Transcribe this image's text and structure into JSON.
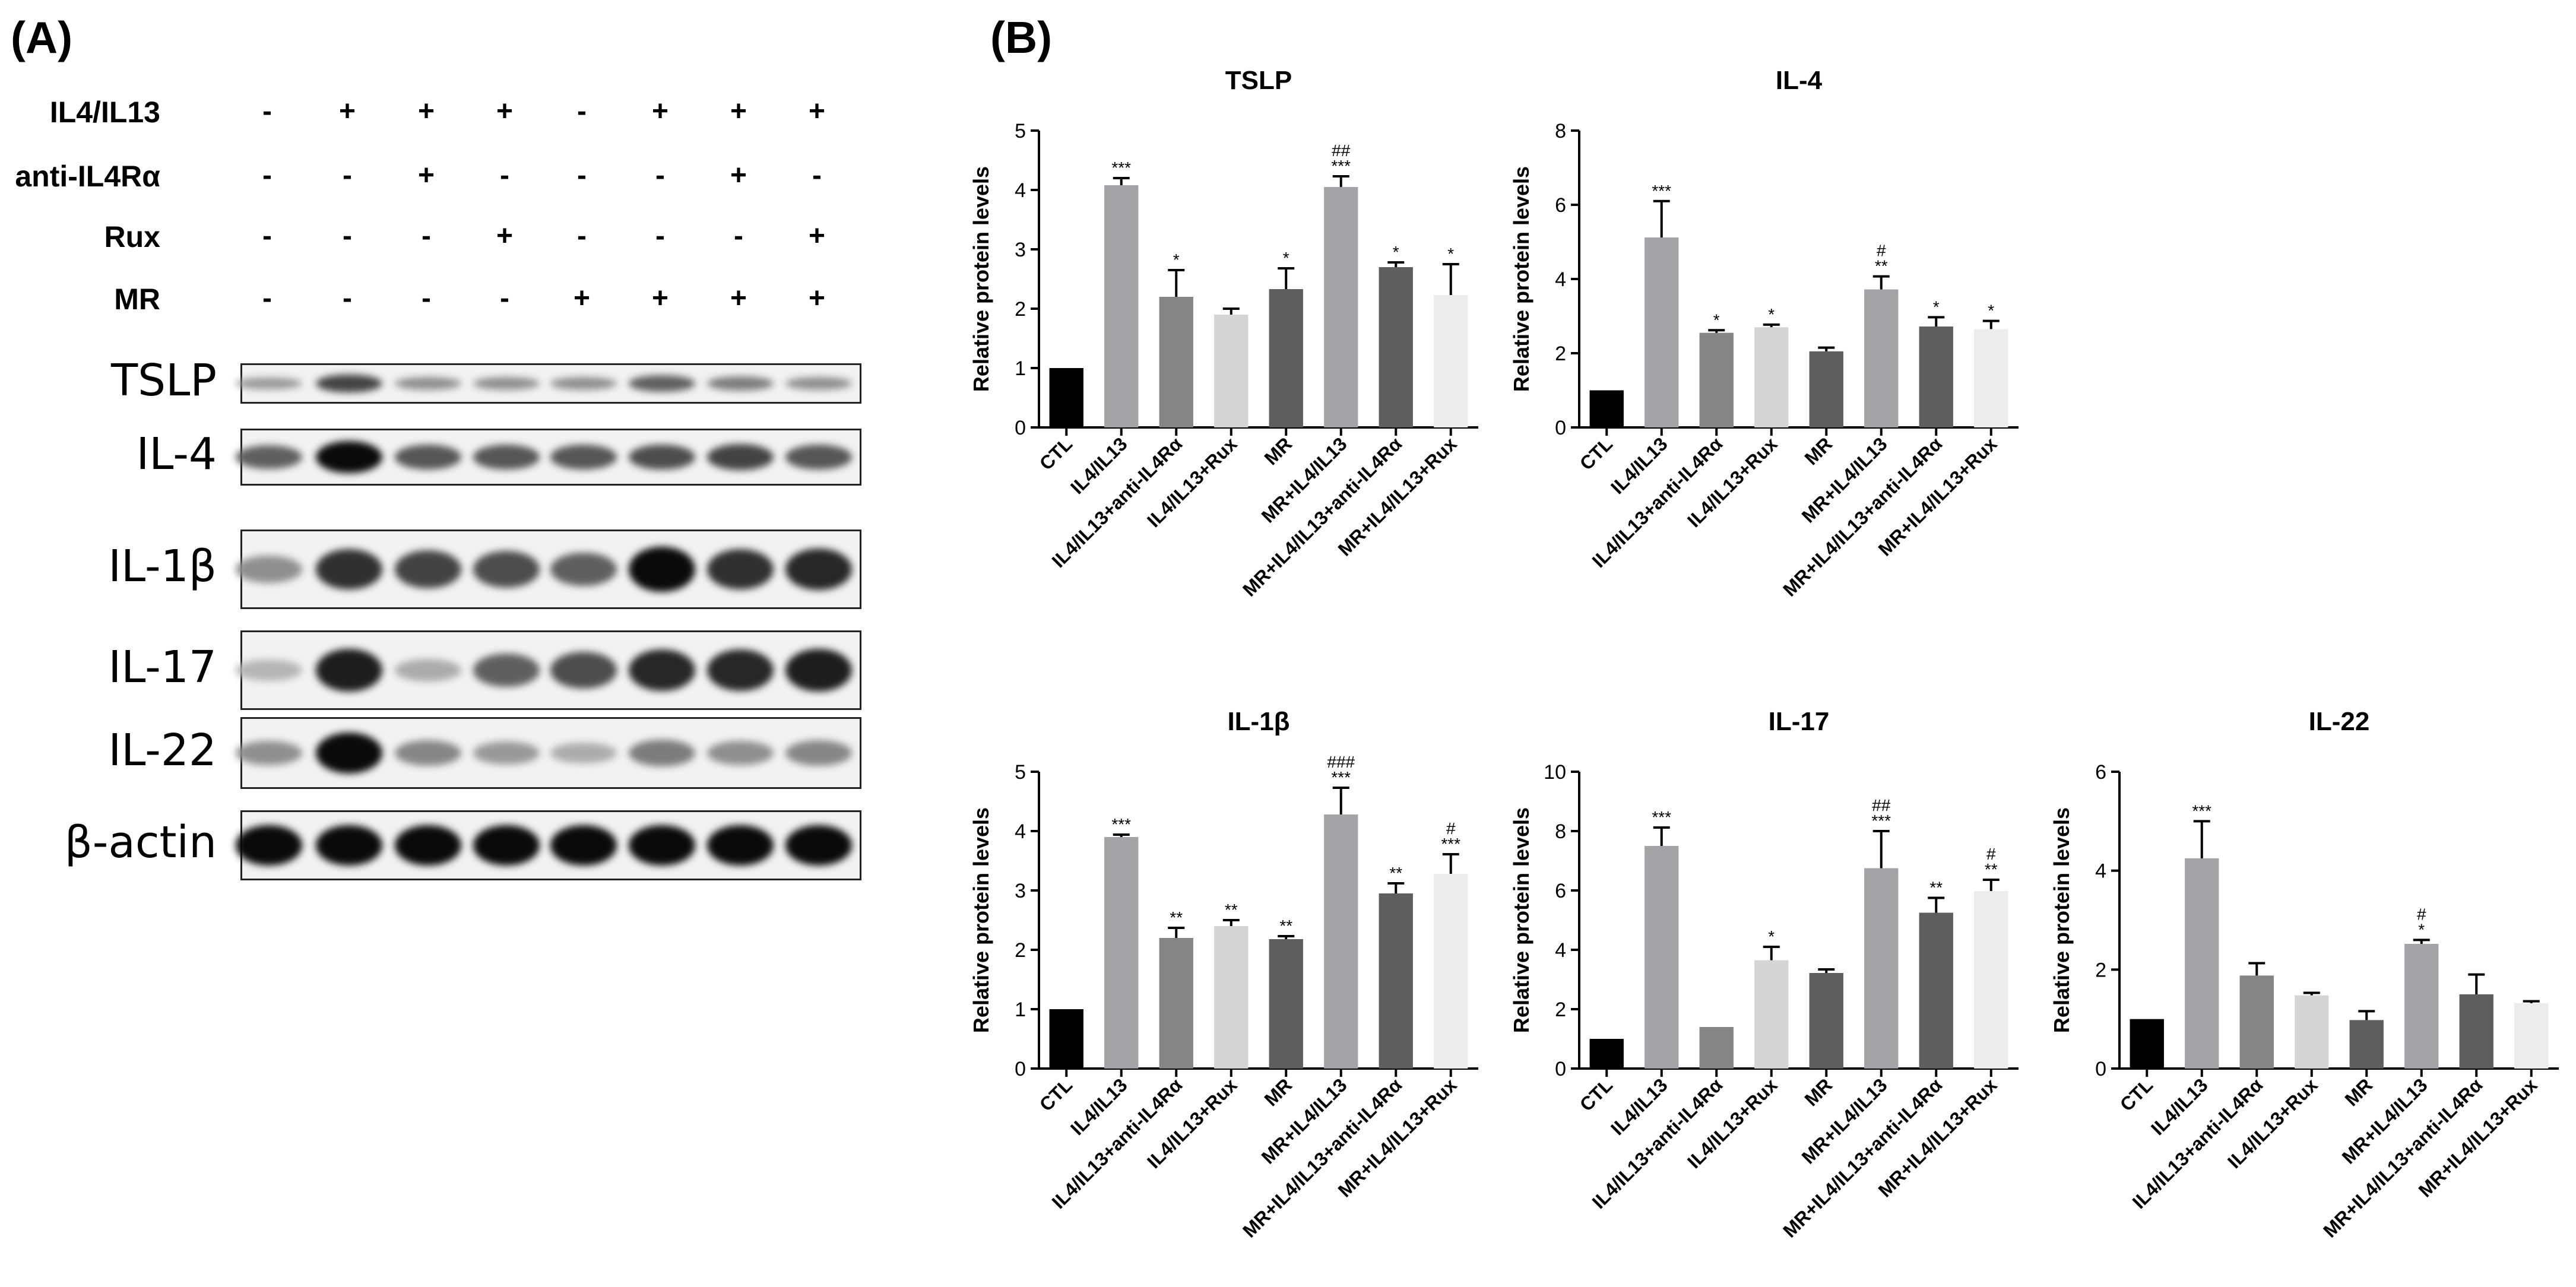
{
  "panels": {
    "a_label": "(A)",
    "b_label": "(B)"
  },
  "western_blot": {
    "conditions": [
      {
        "name": "IL4/IL13",
        "signs": [
          "-",
          "+",
          "+",
          "+",
          "-",
          "+",
          "+",
          "+"
        ]
      },
      {
        "name": "anti-IL4Rα",
        "signs": [
          "-",
          "-",
          "+",
          "-",
          "-",
          "-",
          "+",
          "-"
        ]
      },
      {
        "name": "Rux",
        "signs": [
          "-",
          "-",
          "-",
          "+",
          "-",
          "-",
          "-",
          "+"
        ]
      },
      {
        "name": "MR",
        "signs": [
          "-",
          "-",
          "-",
          "-",
          "+",
          "+",
          "+",
          "+"
        ]
      }
    ],
    "blots": [
      {
        "name": "TSLP",
        "intensity": [
          0.25,
          0.7,
          0.3,
          0.3,
          0.3,
          0.55,
          0.4,
          0.3
        ]
      },
      {
        "name": "IL-4",
        "intensity": [
          0.55,
          1.0,
          0.6,
          0.6,
          0.6,
          0.65,
          0.7,
          0.6
        ]
      },
      {
        "name": "IL-1β",
        "intensity": [
          0.3,
          0.8,
          0.7,
          0.65,
          0.55,
          1.0,
          0.8,
          0.85
        ]
      },
      {
        "name": "IL-17",
        "intensity": [
          0.1,
          0.9,
          0.15,
          0.55,
          0.65,
          0.85,
          0.85,
          0.9
        ]
      },
      {
        "name": "IL-22",
        "intensity": [
          0.3,
          1.0,
          0.35,
          0.25,
          0.15,
          0.4,
          0.3,
          0.35
        ]
      },
      {
        "name": "β-actin",
        "intensity": [
          1.0,
          1.0,
          1.0,
          1.0,
          1.0,
          1.0,
          1.0,
          1.0
        ]
      }
    ]
  },
  "chart_data": [
    {
      "type": "bar",
      "title": "TSLP",
      "ylabel": "Relative protein levels",
      "ylim": [
        0,
        5
      ],
      "yticks": [
        0,
        1,
        2,
        3,
        4,
        5
      ],
      "categories": [
        "CTL",
        "IL4/IL13",
        "IL4/IL13+anti-IL4Rα",
        "IL4/IL13+Rux",
        "MR",
        "MR+IL4/IL13",
        "MR+IL4/IL13+anti-IL4Rα",
        "MR+IL4/IL13+Rux"
      ],
      "values": [
        1.0,
        4.08,
        2.2,
        1.9,
        2.33,
        4.05,
        2.7,
        2.23
      ],
      "errors": [
        0,
        0.12,
        0.45,
        0.1,
        0.35,
        0.18,
        0.08,
        0.52
      ],
      "annotations": [
        [],
        [
          "***"
        ],
        [
          "*"
        ],
        [],
        [
          "*"
        ],
        [
          "##",
          "***"
        ],
        [
          "*"
        ],
        [
          "*"
        ]
      ],
      "colors": [
        "#000000",
        "#a3a3a8",
        "#858585",
        "#d5d5d5",
        "#5e5e5e",
        "#a3a3a8",
        "#5e5e5e",
        "#ececec"
      ]
    },
    {
      "type": "bar",
      "title": "IL-4",
      "ylabel": "Relative protein levels",
      "ylim": [
        0,
        8
      ],
      "yticks": [
        0,
        2,
        4,
        6,
        8
      ],
      "categories": [
        "CTL",
        "IL4/IL13",
        "IL4/IL13+anti-IL4Rα",
        "IL4/IL13+Rux",
        "MR",
        "MR+IL4/IL13",
        "MR+IL4/IL13+anti-IL4Rα",
        "MR+IL4/IL13+Rux"
      ],
      "values": [
        1.0,
        5.12,
        2.55,
        2.7,
        2.05,
        3.72,
        2.72,
        2.65
      ],
      "errors": [
        0,
        0.98,
        0.07,
        0.07,
        0.1,
        0.35,
        0.25,
        0.22
      ],
      "annotations": [
        [],
        [
          "***"
        ],
        [
          "*"
        ],
        [
          "*"
        ],
        [],
        [
          "#",
          "**"
        ],
        [
          "*"
        ],
        [
          "*"
        ]
      ],
      "colors": [
        "#000000",
        "#a3a3a8",
        "#858585",
        "#d5d5d5",
        "#5e5e5e",
        "#a3a3a8",
        "#5e5e5e",
        "#ececec"
      ]
    },
    {
      "type": "bar",
      "title": "IL-1β",
      "ylabel": "Relative protein levels",
      "ylim": [
        0,
        5
      ],
      "yticks": [
        0,
        1,
        2,
        3,
        4,
        5
      ],
      "categories": [
        "CTL",
        "IL4/IL13",
        "IL4/IL13+anti-IL4Rα",
        "IL4/IL13+Rux",
        "MR",
        "MR+IL4/IL13",
        "MR+IL4/IL13+anti-IL4Rα",
        "MR+IL4/IL13+Rux"
      ],
      "values": [
        1.0,
        3.9,
        2.2,
        2.4,
        2.18,
        4.28,
        2.95,
        3.28
      ],
      "errors": [
        0,
        0.04,
        0.17,
        0.1,
        0.05,
        0.45,
        0.17,
        0.33
      ],
      "annotations": [
        [],
        [
          "***"
        ],
        [
          "**"
        ],
        [
          "**"
        ],
        [
          "**"
        ],
        [
          "###",
          "***"
        ],
        [
          "**"
        ],
        [
          "#",
          "***"
        ]
      ],
      "colors": [
        "#000000",
        "#a3a3a8",
        "#858585",
        "#d5d5d5",
        "#5e5e5e",
        "#a3a3a8",
        "#5e5e5e",
        "#ececec"
      ]
    },
    {
      "type": "bar",
      "title": "IL-17",
      "ylabel": "Relative protein levels",
      "ylim": [
        0,
        10
      ],
      "yticks": [
        0,
        2,
        4,
        6,
        8,
        10
      ],
      "categories": [
        "CTL",
        "IL4/IL13",
        "IL4/IL13+anti-IL4Rα",
        "IL4/IL13+Rux",
        "MR",
        "MR+IL4/IL13",
        "MR+IL4/IL13+anti-IL4Rα",
        "MR+IL4/IL13+Rux"
      ],
      "values": [
        1.0,
        7.5,
        1.4,
        3.65,
        3.22,
        6.75,
        5.25,
        5.98
      ],
      "errors": [
        0,
        0.62,
        0,
        0.45,
        0.12,
        1.25,
        0.5,
        0.38
      ],
      "annotations": [
        [],
        [
          "***"
        ],
        [],
        [
          "*"
        ],
        [],
        [
          "##",
          "***"
        ],
        [
          "**"
        ],
        [
          "#",
          "**"
        ]
      ],
      "colors": [
        "#000000",
        "#a3a3a8",
        "#858585",
        "#d5d5d5",
        "#5e5e5e",
        "#a3a3a8",
        "#5e5e5e",
        "#ececec"
      ]
    },
    {
      "type": "bar",
      "title": "IL-22",
      "ylabel": "Relative protein levels",
      "ylim": [
        0,
        6
      ],
      "yticks": [
        0,
        2,
        4,
        6
      ],
      "categories": [
        "CTL",
        "IL4/IL13",
        "IL4/IL13+anti-IL4Rα",
        "IL4/IL13+Rux",
        "MR",
        "MR+IL4/IL13",
        "MR+IL4/IL13+anti-IL4Rα",
        "MR+IL4/IL13+Rux"
      ],
      "values": [
        1.0,
        4.25,
        1.88,
        1.48,
        0.98,
        2.52,
        1.5,
        1.32
      ],
      "errors": [
        0,
        0.75,
        0.25,
        0.05,
        0.18,
        0.08,
        0.4,
        0.04
      ],
      "annotations": [
        [],
        [
          "***"
        ],
        [],
        [],
        [],
        [
          "#",
          "*"
        ],
        [],
        []
      ],
      "colors": [
        "#000000",
        "#a3a3a8",
        "#858585",
        "#d5d5d5",
        "#5e5e5e",
        "#a3a3a8",
        "#5e5e5e",
        "#ececec"
      ]
    }
  ]
}
